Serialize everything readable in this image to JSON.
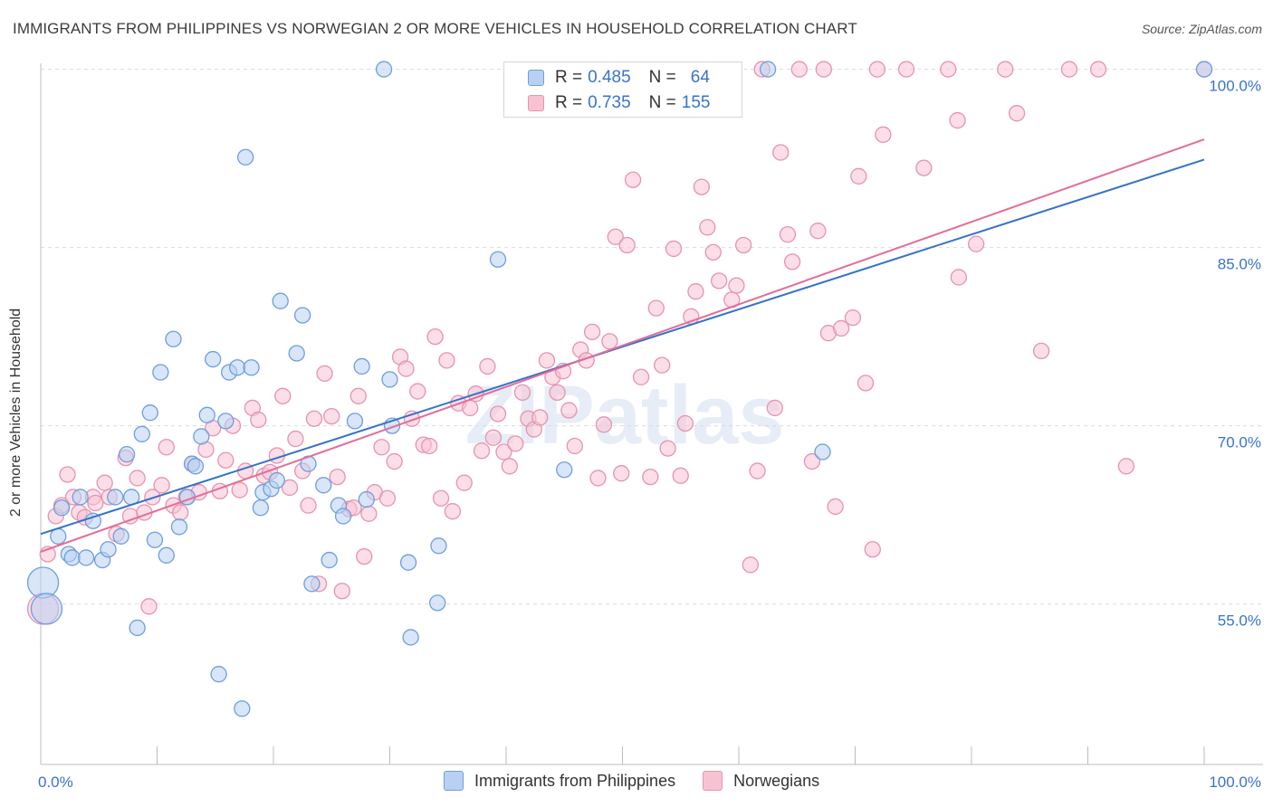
{
  "title": "IMMIGRANTS FROM PHILIPPINES VS NORWEGIAN 2 OR MORE VEHICLES IN HOUSEHOLD CORRELATION CHART",
  "source": "Source: ZipAtlas.com",
  "watermark": "ZIPatlas",
  "colors": {
    "blue_fill": "#b8d1f3",
    "blue_stroke": "#6e9ede",
    "blue_line": "#3572c8",
    "pink_fill": "#f7c3d3",
    "pink_stroke": "#e693b0",
    "pink_line": "#e26d9a",
    "axis_text": "#3a73c9",
    "grid": "#dcdcdc"
  },
  "legend": {
    "rows": [
      {
        "r_label": "R =",
        "r_value": "0.485",
        "n_label": "N =",
        "n_value": "64"
      },
      {
        "r_label": "R =",
        "r_value": "0.735",
        "n_label": "N =",
        "n_value": "155"
      }
    ]
  },
  "chart_data": {
    "type": "scatter",
    "title": "IMMIGRANTS FROM PHILIPPINES VS NORWEGIAN 2 OR MORE VEHICLES IN HOUSEHOLD CORRELATION CHART",
    "xlabel": "",
    "ylabel": "2 or more Vehicles in Household",
    "xlim": [
      0,
      100
    ],
    "ylim": [
      41.5,
      100.5
    ],
    "x_tick_labels": [
      "0.0%",
      "100.0%"
    ],
    "y_ticks": [
      55,
      70,
      85,
      100
    ],
    "y_tick_labels": [
      "55.0%",
      "70.0%",
      "85.0%",
      "100.0%"
    ],
    "grid": true,
    "series": [
      {
        "name": "Immigrants from Philippines",
        "color": "#6e9ede",
        "trend": {
          "x": [
            0,
            100
          ],
          "y": [
            60.9,
            92.4
          ]
        },
        "points": [
          {
            "x": 0.2,
            "y": 56.8,
            "big": true
          },
          {
            "x": 0.5,
            "y": 54.6,
            "big": true
          },
          {
            "x": 1.5,
            "y": 60.7
          },
          {
            "x": 1.8,
            "y": 63.1
          },
          {
            "x": 2.4,
            "y": 59.2
          },
          {
            "x": 2.7,
            "y": 58.9
          },
          {
            "x": 3.4,
            "y": 64.0
          },
          {
            "x": 3.9,
            "y": 58.9
          },
          {
            "x": 4.5,
            "y": 62.0
          },
          {
            "x": 5.3,
            "y": 58.7
          },
          {
            "x": 5.8,
            "y": 59.6
          },
          {
            "x": 6.4,
            "y": 64.0
          },
          {
            "x": 6.9,
            "y": 60.7
          },
          {
            "x": 7.4,
            "y": 67.6
          },
          {
            "x": 7.8,
            "y": 64.0
          },
          {
            "x": 8.3,
            "y": 53.0
          },
          {
            "x": 8.7,
            "y": 69.3
          },
          {
            "x": 9.4,
            "y": 71.1
          },
          {
            "x": 9.8,
            "y": 60.4
          },
          {
            "x": 10.3,
            "y": 74.5
          },
          {
            "x": 10.8,
            "y": 59.1
          },
          {
            "x": 11.4,
            "y": 77.3
          },
          {
            "x": 11.9,
            "y": 61.5
          },
          {
            "x": 12.6,
            "y": 64.0
          },
          {
            "x": 13.0,
            "y": 66.8
          },
          {
            "x": 13.3,
            "y": 66.6
          },
          {
            "x": 13.8,
            "y": 69.1
          },
          {
            "x": 14.3,
            "y": 70.9
          },
          {
            "x": 14.8,
            "y": 75.6
          },
          {
            "x": 15.3,
            "y": 49.1
          },
          {
            "x": 15.9,
            "y": 70.4
          },
          {
            "x": 16.2,
            "y": 74.5
          },
          {
            "x": 16.9,
            "y": 74.9
          },
          {
            "x": 17.3,
            "y": 46.2
          },
          {
            "x": 17.6,
            "y": 92.6
          },
          {
            "x": 18.1,
            "y": 74.9
          },
          {
            "x": 18.9,
            "y": 63.1
          },
          {
            "x": 19.1,
            "y": 64.4
          },
          {
            "x": 19.8,
            "y": 64.7
          },
          {
            "x": 20.3,
            "y": 65.4
          },
          {
            "x": 20.6,
            "y": 80.5
          },
          {
            "x": 22.0,
            "y": 76.1
          },
          {
            "x": 22.5,
            "y": 79.3
          },
          {
            "x": 23.0,
            "y": 66.8
          },
          {
            "x": 23.3,
            "y": 56.7
          },
          {
            "x": 24.3,
            "y": 65.0
          },
          {
            "x": 24.8,
            "y": 58.7
          },
          {
            "x": 25.6,
            "y": 63.3
          },
          {
            "x": 26.0,
            "y": 62.4
          },
          {
            "x": 27.0,
            "y": 70.4
          },
          {
            "x": 27.6,
            "y": 75.0
          },
          {
            "x": 28.0,
            "y": 63.8
          },
          {
            "x": 29.5,
            "y": 100
          },
          {
            "x": 30.0,
            "y": 73.9
          },
          {
            "x": 30.2,
            "y": 70.0
          },
          {
            "x": 31.6,
            "y": 58.5
          },
          {
            "x": 31.8,
            "y": 52.2
          },
          {
            "x": 34.2,
            "y": 59.9
          },
          {
            "x": 34.1,
            "y": 55.1
          },
          {
            "x": 39.3,
            "y": 84.0
          },
          {
            "x": 45.0,
            "y": 66.3
          },
          {
            "x": 62.5,
            "y": 100
          },
          {
            "x": 67.2,
            "y": 67.8
          },
          {
            "x": 100,
            "y": 100
          }
        ]
      },
      {
        "name": "Norwegians",
        "color": "#e693b0",
        "trend": {
          "x": [
            0,
            100
          ],
          "y": [
            59.4,
            94.1
          ]
        },
        "points": [
          {
            "x": 0.2,
            "y": 54.6,
            "big": true
          },
          {
            "x": 0.6,
            "y": 59.2
          },
          {
            "x": 1.3,
            "y": 62.4
          },
          {
            "x": 1.8,
            "y": 63.3
          },
          {
            "x": 2.3,
            "y": 65.9
          },
          {
            "x": 2.8,
            "y": 64.0
          },
          {
            "x": 3.3,
            "y": 62.7
          },
          {
            "x": 3.8,
            "y": 62.3
          },
          {
            "x": 4.5,
            "y": 64.0
          },
          {
            "x": 4.7,
            "y": 63.5
          },
          {
            "x": 5.5,
            "y": 65.2
          },
          {
            "x": 5.9,
            "y": 64.0
          },
          {
            "x": 6.5,
            "y": 60.9
          },
          {
            "x": 7.3,
            "y": 67.3
          },
          {
            "x": 7.7,
            "y": 62.4
          },
          {
            "x": 8.3,
            "y": 65.6
          },
          {
            "x": 8.9,
            "y": 62.7
          },
          {
            "x": 9.3,
            "y": 54.8
          },
          {
            "x": 9.6,
            "y": 64.0
          },
          {
            "x": 10.4,
            "y": 65.0
          },
          {
            "x": 10.8,
            "y": 68.2
          },
          {
            "x": 11.4,
            "y": 63.3
          },
          {
            "x": 12.0,
            "y": 62.7
          },
          {
            "x": 12.5,
            "y": 64.0
          },
          {
            "x": 13.0,
            "y": 66.8
          },
          {
            "x": 13.6,
            "y": 64.4
          },
          {
            "x": 14.2,
            "y": 68.0
          },
          {
            "x": 14.8,
            "y": 69.8
          },
          {
            "x": 15.4,
            "y": 64.5
          },
          {
            "x": 15.9,
            "y": 67.1
          },
          {
            "x": 16.5,
            "y": 70.0
          },
          {
            "x": 17.1,
            "y": 64.6
          },
          {
            "x": 17.6,
            "y": 66.2
          },
          {
            "x": 18.2,
            "y": 71.5
          },
          {
            "x": 18.7,
            "y": 70.5
          },
          {
            "x": 19.2,
            "y": 65.8
          },
          {
            "x": 19.7,
            "y": 66.1
          },
          {
            "x": 20.3,
            "y": 67.5
          },
          {
            "x": 20.8,
            "y": 72.5
          },
          {
            "x": 21.4,
            "y": 64.8
          },
          {
            "x": 21.9,
            "y": 68.9
          },
          {
            "x": 22.5,
            "y": 66.2
          },
          {
            "x": 23.0,
            "y": 63.3
          },
          {
            "x": 23.5,
            "y": 70.6
          },
          {
            "x": 23.9,
            "y": 56.7
          },
          {
            "x": 24.4,
            "y": 74.4
          },
          {
            "x": 25.0,
            "y": 70.8
          },
          {
            "x": 25.5,
            "y": 65.7
          },
          {
            "x": 25.9,
            "y": 56.1
          },
          {
            "x": 26.5,
            "y": 63.0
          },
          {
            "x": 26.9,
            "y": 63.1
          },
          {
            "x": 27.3,
            "y": 72.5
          },
          {
            "x": 27.8,
            "y": 59.0
          },
          {
            "x": 28.2,
            "y": 62.6
          },
          {
            "x": 28.7,
            "y": 64.4
          },
          {
            "x": 29.3,
            "y": 68.2
          },
          {
            "x": 29.8,
            "y": 63.9
          },
          {
            "x": 30.4,
            "y": 67.0
          },
          {
            "x": 30.9,
            "y": 75.8
          },
          {
            "x": 31.4,
            "y": 74.8
          },
          {
            "x": 31.9,
            "y": 70.6
          },
          {
            "x": 32.4,
            "y": 72.9
          },
          {
            "x": 32.9,
            "y": 68.4
          },
          {
            "x": 33.4,
            "y": 68.3
          },
          {
            "x": 33.9,
            "y": 77.5
          },
          {
            "x": 34.4,
            "y": 63.9
          },
          {
            "x": 34.9,
            "y": 75.5
          },
          {
            "x": 35.4,
            "y": 62.8
          },
          {
            "x": 35.9,
            "y": 71.9
          },
          {
            "x": 36.4,
            "y": 65.2
          },
          {
            "x": 36.9,
            "y": 71.5
          },
          {
            "x": 37.4,
            "y": 72.7
          },
          {
            "x": 37.9,
            "y": 67.9
          },
          {
            "x": 38.4,
            "y": 75.0
          },
          {
            "x": 38.9,
            "y": 69.0
          },
          {
            "x": 39.3,
            "y": 71.0
          },
          {
            "x": 39.8,
            "y": 67.8
          },
          {
            "x": 40.3,
            "y": 66.6
          },
          {
            "x": 40.8,
            "y": 68.5
          },
          {
            "x": 41.4,
            "y": 72.8
          },
          {
            "x": 41.9,
            "y": 70.6
          },
          {
            "x": 42.4,
            "y": 69.7
          },
          {
            "x": 42.9,
            "y": 70.7
          },
          {
            "x": 43.5,
            "y": 75.5
          },
          {
            "x": 44.0,
            "y": 74.1
          },
          {
            "x": 44.4,
            "y": 72.8
          },
          {
            "x": 44.9,
            "y": 74.6
          },
          {
            "x": 45.4,
            "y": 71.3
          },
          {
            "x": 45.9,
            "y": 68.3
          },
          {
            "x": 46.4,
            "y": 76.4
          },
          {
            "x": 46.9,
            "y": 75.5
          },
          {
            "x": 47.4,
            "y": 77.9
          },
          {
            "x": 47.9,
            "y": 65.6
          },
          {
            "x": 48.4,
            "y": 70.1
          },
          {
            "x": 48.9,
            "y": 77.1
          },
          {
            "x": 49.4,
            "y": 85.9
          },
          {
            "x": 49.9,
            "y": 66.0
          },
          {
            "x": 50.4,
            "y": 85.2
          },
          {
            "x": 50.9,
            "y": 90.7
          },
          {
            "x": 51.6,
            "y": 74.1
          },
          {
            "x": 52.4,
            "y": 65.7
          },
          {
            "x": 52.9,
            "y": 79.9
          },
          {
            "x": 53.4,
            "y": 75.1
          },
          {
            "x": 53.9,
            "y": 68.1
          },
          {
            "x": 54.4,
            "y": 84.9
          },
          {
            "x": 55.0,
            "y": 65.8
          },
          {
            "x": 55.4,
            "y": 70.2
          },
          {
            "x": 55.9,
            "y": 79.2
          },
          {
            "x": 56.3,
            "y": 81.3
          },
          {
            "x": 56.8,
            "y": 90.1
          },
          {
            "x": 57.3,
            "y": 86.7
          },
          {
            "x": 57.8,
            "y": 84.6
          },
          {
            "x": 58.3,
            "y": 82.2
          },
          {
            "x": 59.4,
            "y": 80.6
          },
          {
            "x": 59.8,
            "y": 81.8
          },
          {
            "x": 60.4,
            "y": 85.2
          },
          {
            "x": 61.0,
            "y": 58.3
          },
          {
            "x": 61.6,
            "y": 66.2
          },
          {
            "x": 62.0,
            "y": 100
          },
          {
            "x": 63.1,
            "y": 71.5
          },
          {
            "x": 63.6,
            "y": 93.0
          },
          {
            "x": 64.2,
            "y": 86.1
          },
          {
            "x": 64.6,
            "y": 83.8
          },
          {
            "x": 65.2,
            "y": 100
          },
          {
            "x": 66.3,
            "y": 67.0
          },
          {
            "x": 66.8,
            "y": 86.4
          },
          {
            "x": 67.3,
            "y": 100
          },
          {
            "x": 67.7,
            "y": 77.8
          },
          {
            "x": 68.3,
            "y": 63.2
          },
          {
            "x": 68.8,
            "y": 78.2
          },
          {
            "x": 69.8,
            "y": 79.1
          },
          {
            "x": 70.3,
            "y": 91.0
          },
          {
            "x": 70.9,
            "y": 73.6
          },
          {
            "x": 71.5,
            "y": 59.6
          },
          {
            "x": 71.9,
            "y": 100
          },
          {
            "x": 72.4,
            "y": 94.5
          },
          {
            "x": 74.4,
            "y": 100
          },
          {
            "x": 75.9,
            "y": 91.7
          },
          {
            "x": 78.0,
            "y": 100
          },
          {
            "x": 78.8,
            "y": 95.7
          },
          {
            "x": 78.9,
            "y": 82.5
          },
          {
            "x": 80.4,
            "y": 85.3
          },
          {
            "x": 82.9,
            "y": 100
          },
          {
            "x": 83.9,
            "y": 96.3
          },
          {
            "x": 86.0,
            "y": 76.3
          },
          {
            "x": 88.4,
            "y": 100
          },
          {
            "x": 90.9,
            "y": 100
          },
          {
            "x": 93.3,
            "y": 66.6
          },
          {
            "x": 100,
            "y": 100
          }
        ]
      }
    ]
  }
}
